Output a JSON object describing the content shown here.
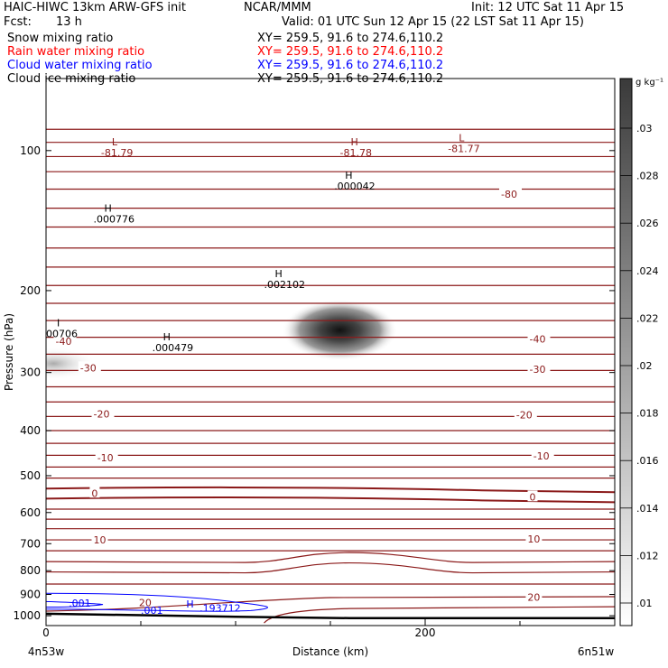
{
  "header": {
    "title": "HAIC-HIWC 13km ARW-GFS init",
    "center": "NCAR/MMM",
    "init": "Init: 12 UTC Sat 11 Apr 15",
    "fcst_label": "Fcst:",
    "fcst_value": "13 h",
    "valid": "Valid: 01 UTC Sun 12 Apr 15 (22 LST Sat 11 Apr 15)"
  },
  "legend": [
    {
      "name": "Snow mixing ratio",
      "xy": "XY= 259.5, 91.6 to 274.6,110.2",
      "color": "#000000"
    },
    {
      "name": "Rain water mixing ratio",
      "xy": "XY= 259.5, 91.6 to 274.6,110.2",
      "color": "#ff0000"
    },
    {
      "name": "Cloud water mixing ratio",
      "xy": "XY= 259.5, 91.6 to 274.6,110.2",
      "color": "#0000ff"
    },
    {
      "name": "Cloud ice mixing ratio",
      "xy": "XY= 259.5, 91.6 to 274.6,110.2",
      "color": "#000000"
    }
  ],
  "colors": {
    "temperature": "#8b1a1a",
    "cloud_water": "#0000ff",
    "terrain": "#000000"
  },
  "chart_data": {
    "type": "cross-section",
    "xlabel": "Distance (km)",
    "ylabel": "Pressure (hPa)",
    "xlim": [
      0,
      300
    ],
    "ylim": [
      1050,
      70
    ],
    "y_scale": "log",
    "x_ticks": [
      0,
      200
    ],
    "x_minor_ticks": [
      50,
      100,
      150,
      250,
      300
    ],
    "y_ticks": [
      100,
      200,
      300,
      400,
      500,
      600,
      700,
      800,
      900,
      1000
    ],
    "x_endpoints": [
      "4n53w",
      "6n51w"
    ],
    "colorbar": {
      "unit": "g kg⁻¹",
      "ticks": [
        ".03",
        ".028",
        ".026",
        ".024",
        ".022",
        ".02",
        ".018",
        ".016",
        ".014",
        ".012",
        ".01"
      ]
    },
    "temperature_labels": [
      {
        "text": "-80",
        "x": 240,
        "p": 124
      },
      {
        "text": "-40",
        "x": 255,
        "p": 254
      },
      {
        "text": "-40",
        "x": 5,
        "p": 257
      },
      {
        "text": "-30",
        "x": 18,
        "p": 293
      },
      {
        "text": "-30",
        "x": 255,
        "p": 295
      },
      {
        "text": "-20",
        "x": 25,
        "p": 368
      },
      {
        "text": "-20",
        "x": 248,
        "p": 370
      },
      {
        "text": "-10",
        "x": 27,
        "p": 457
      },
      {
        "text": "-10",
        "x": 257,
        "p": 453
      },
      {
        "text": "0",
        "x": 24,
        "p": 545
      },
      {
        "text": "0",
        "x": 255,
        "p": 555
      },
      {
        "text": "10",
        "x": 25,
        "p": 687
      },
      {
        "text": "10",
        "x": 254,
        "p": 683
      },
      {
        "text": "20",
        "x": 49,
        "p": 936
      },
      {
        "text": "20",
        "x": 254,
        "p": 912
      }
    ],
    "extrema_labels": [
      {
        "mark": "L",
        "value": "-81.79",
        "x": 29,
        "p": 100
      },
      {
        "mark": "H",
        "value": "-81.78",
        "x": 155,
        "p": 100
      },
      {
        "mark": "L",
        "value": "-81.77",
        "x": 212,
        "p": 98
      },
      {
        "mark": "H",
        "value": ".000776",
        "x": 25,
        "p": 139
      },
      {
        "mark": "H",
        "value": ".000042",
        "x": 152,
        "p": 118
      },
      {
        "mark": "H",
        "value": ".002102",
        "x": 115,
        "p": 192
      },
      {
        "mark": "I",
        "value": "00706",
        "x": 0,
        "p": 245
      },
      {
        "mark": "H",
        "value": ".000479",
        "x": 56,
        "p": 263
      }
    ],
    "cloud_water_labels": [
      {
        "text": ".001",
        "x": 12,
        "p": 940
      },
      {
        "text": ".001",
        "x": 50,
        "p": 973
      },
      {
        "text": "H",
        "x": 74,
        "p": 943
      },
      {
        "text": ".193712",
        "x": 81,
        "p": 963
      }
    ],
    "isotherm_levels": [
      90,
      96,
      103,
      111,
      121,
      133,
      146,
      162,
      178,
      195,
      213,
      232,
      252,
      274,
      297,
      322,
      347,
      373,
      400,
      426,
      452,
      479,
      506,
      533,
      560,
      590,
      620,
      650,
      687,
      725,
      765,
      805,
      855,
      910,
      965
    ],
    "snow_max_location": {
      "x": 155,
      "p": 240
    }
  }
}
